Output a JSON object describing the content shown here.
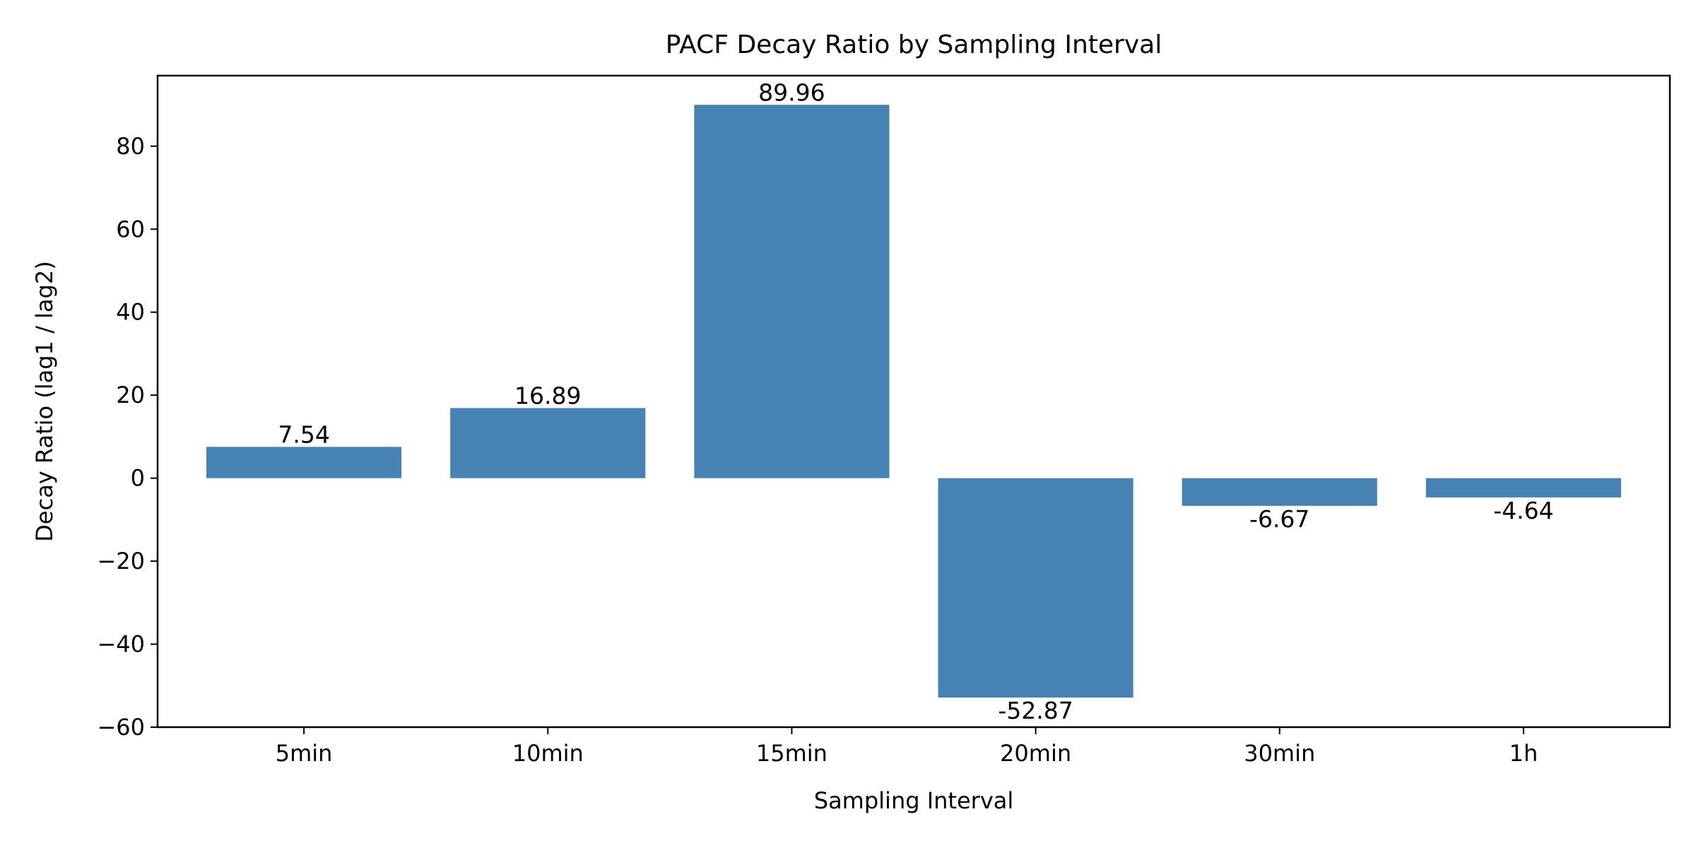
{
  "chart_data": {
    "type": "bar",
    "title": "PACF Decay Ratio by Sampling Interval",
    "xlabel": "Sampling Interval",
    "ylabel": "Decay Ratio (lag1 / lag2)",
    "categories": [
      "5min",
      "10min",
      "15min",
      "20min",
      "30min",
      "1h"
    ],
    "values": [
      7.54,
      16.89,
      89.96,
      -52.87,
      -6.67,
      -4.64
    ],
    "value_labels": [
      "7.54",
      "16.89",
      "89.96",
      "-52.87",
      "-6.67",
      "-4.64"
    ],
    "ylim": [
      -60,
      97
    ],
    "yticks": [
      -60,
      -40,
      -20,
      0,
      20,
      40,
      60,
      80
    ],
    "ytick_labels": [
      "−60",
      "−40",
      "−20",
      "0",
      "20",
      "40",
      "60",
      "80"
    ],
    "bar_color": "#4682B4",
    "grid": false,
    "legend": "none"
  }
}
